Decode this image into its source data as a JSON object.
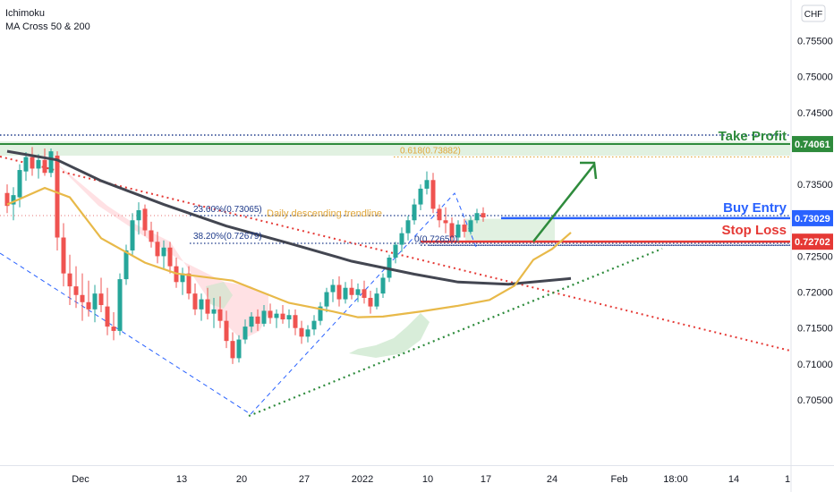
{
  "legend": {
    "line1": "Ichimoku",
    "line2": "MA Cross 50 & 200"
  },
  "currency_badge": "CHF",
  "colors": {
    "up_candle": "#26a69a",
    "down_candle": "#ef5350",
    "ma50": "#e8b949",
    "ma200": "#434651",
    "take_profit": "#2e8b3c",
    "buy_entry": "#2962ff",
    "stop_loss": "#e53935",
    "fib": "#e0a63a",
    "trendline": "#e53935",
    "support": "#2e8b3c",
    "cloud_bull": "#c8e6c9",
    "cloud_bear": "#ffcdd2"
  },
  "chart_data": {
    "type": "line",
    "instrument_quote": "CHF",
    "y_axis": {
      "ticks": [
        "0.75500",
        "0.75000",
        "0.74500",
        "0.74000",
        "0.73500",
        "0.73000",
        "0.72500",
        "0.72000",
        "0.71500",
        "0.71000",
        "0.70500"
      ],
      "range": [
        0.7045,
        0.7588
      ]
    },
    "x_axis": {
      "ticks": [
        "Dec",
        "13",
        "20",
        "27",
        "2022",
        "10",
        "17",
        "24",
        "Feb",
        "18:00",
        "14",
        "1"
      ]
    },
    "price_labels": {
      "take_profit": "0.74061",
      "buy_entry": "0.73029",
      "stop_loss": "0.72702"
    },
    "levels": [
      {
        "name": "Take Profit",
        "value": 0.74061
      },
      {
        "name": "Buy Entry",
        "value": 0.73029
      },
      {
        "name": "Stop Loss",
        "value": 0.72702
      }
    ],
    "fib_labels": [
      {
        "text": "0.618(0.73882)",
        "value": 0.73882
      },
      {
        "text": "23.60%(0.73065)",
        "value": 0.73065
      },
      {
        "text": "38.20%(0.72679)",
        "value": 0.72679
      },
      {
        "text": "0(0.72650)",
        "value": 0.7265
      }
    ],
    "annotations": [
      "Daily descending trendline"
    ],
    "ma50_points": [
      [
        0,
        0.7322
      ],
      [
        6,
        0.7345
      ],
      [
        10,
        0.7332
      ],
      [
        15,
        0.7275
      ],
      [
        22,
        0.7241
      ],
      [
        27,
        0.7226
      ],
      [
        36,
        0.7216
      ],
      [
        45,
        0.7185
      ],
      [
        52,
        0.7173
      ],
      [
        56,
        0.7165
      ],
      [
        60,
        0.7166
      ],
      [
        66,
        0.7173
      ],
      [
        72,
        0.7181
      ],
      [
        77,
        0.7189
      ],
      [
        81,
        0.7209
      ],
      [
        84,
        0.7245
      ],
      [
        87,
        0.726
      ],
      [
        90,
        0.7283
      ]
    ],
    "ma200_points": [
      [
        0,
        0.7396
      ],
      [
        8,
        0.7384
      ],
      [
        15,
        0.7355
      ],
      [
        25,
        0.7322
      ],
      [
        35,
        0.7292
      ],
      [
        45,
        0.7268
      ],
      [
        55,
        0.7243
      ],
      [
        65,
        0.7225
      ],
      [
        72,
        0.7214
      ],
      [
        80,
        0.7211
      ],
      [
        90,
        0.7219
      ]
    ],
    "candles": [
      [
        0.7338,
        0.735,
        0.731,
        0.732
      ],
      [
        0.7322,
        0.7346,
        0.73,
        0.7335
      ],
      [
        0.7332,
        0.7378,
        0.7318,
        0.737
      ],
      [
        0.7368,
        0.7395,
        0.7355,
        0.7388
      ],
      [
        0.7388,
        0.7402,
        0.7362,
        0.7372
      ],
      [
        0.7372,
        0.7392,
        0.7358,
        0.7384
      ],
      [
        0.7384,
        0.74,
        0.7362,
        0.7366
      ],
      [
        0.7366,
        0.74,
        0.736,
        0.7396
      ],
      [
        0.739,
        0.7396,
        0.7258,
        0.7276
      ],
      [
        0.7276,
        0.7296,
        0.7208,
        0.7226
      ],
      [
        0.7226,
        0.7252,
        0.7182,
        0.7208
      ],
      [
        0.7208,
        0.7236,
        0.7178,
        0.7196
      ],
      [
        0.7196,
        0.7226,
        0.716,
        0.7186
      ],
      [
        0.7186,
        0.7216,
        0.7166,
        0.7176
      ],
      [
        0.7176,
        0.721,
        0.7158,
        0.7198
      ],
      [
        0.7198,
        0.722,
        0.7172,
        0.7182
      ],
      [
        0.718,
        0.7206,
        0.714,
        0.7152
      ],
      [
        0.7152,
        0.7172,
        0.7133,
        0.7146
      ],
      [
        0.7146,
        0.7226,
        0.714,
        0.7218
      ],
      [
        0.7218,
        0.7266,
        0.721,
        0.7258
      ],
      [
        0.7258,
        0.731,
        0.725,
        0.73
      ],
      [
        0.73,
        0.7325,
        0.728,
        0.7314
      ],
      [
        0.7316,
        0.7322,
        0.7278,
        0.7286
      ],
      [
        0.7286,
        0.7298,
        0.7262,
        0.727
      ],
      [
        0.727,
        0.7284,
        0.724,
        0.725
      ],
      [
        0.725,
        0.7272,
        0.7232,
        0.7262
      ],
      [
        0.7262,
        0.727,
        0.7226,
        0.7236
      ],
      [
        0.7236,
        0.7248,
        0.7206,
        0.7214
      ],
      [
        0.7214,
        0.7234,
        0.7196,
        0.7226
      ],
      [
        0.7226,
        0.7236,
        0.719,
        0.7198
      ],
      [
        0.7198,
        0.7212,
        0.7168,
        0.7176
      ],
      [
        0.7176,
        0.7198,
        0.716,
        0.719
      ],
      [
        0.719,
        0.7206,
        0.7162,
        0.717
      ],
      [
        0.717,
        0.7192,
        0.715,
        0.7176
      ],
      [
        0.7176,
        0.7194,
        0.715,
        0.716
      ],
      [
        0.716,
        0.7174,
        0.7122,
        0.7132
      ],
      [
        0.7132,
        0.7144,
        0.71,
        0.7108
      ],
      [
        0.7108,
        0.714,
        0.7102,
        0.7134
      ],
      [
        0.7134,
        0.7162,
        0.7128,
        0.7152
      ],
      [
        0.7152,
        0.7172,
        0.7144,
        0.7166
      ],
      [
        0.7166,
        0.7176,
        0.7146,
        0.7156
      ],
      [
        0.7156,
        0.7182,
        0.7152,
        0.7174
      ],
      [
        0.7174,
        0.7184,
        0.7156,
        0.7164
      ],
      [
        0.7164,
        0.7176,
        0.715,
        0.717
      ],
      [
        0.717,
        0.7182,
        0.7156,
        0.7162
      ],
      [
        0.7162,
        0.7176,
        0.715,
        0.7168
      ],
      [
        0.7168,
        0.7176,
        0.714,
        0.715
      ],
      [
        0.715,
        0.716,
        0.7128,
        0.7138
      ],
      [
        0.7138,
        0.7154,
        0.713,
        0.7148
      ],
      [
        0.7148,
        0.7168,
        0.714,
        0.716
      ],
      [
        0.716,
        0.7186,
        0.7154,
        0.718
      ],
      [
        0.718,
        0.7206,
        0.7172,
        0.72
      ],
      [
        0.72,
        0.7218,
        0.7186,
        0.721
      ],
      [
        0.721,
        0.7222,
        0.718,
        0.719
      ],
      [
        0.719,
        0.7214,
        0.7184,
        0.7206
      ],
      [
        0.7206,
        0.7218,
        0.719,
        0.7196
      ],
      [
        0.7196,
        0.7212,
        0.7186,
        0.7204
      ],
      [
        0.7204,
        0.7216,
        0.7184,
        0.7192
      ],
      [
        0.7192,
        0.7202,
        0.717,
        0.718
      ],
      [
        0.718,
        0.7206,
        0.7176,
        0.7198
      ],
      [
        0.7198,
        0.7226,
        0.7192,
        0.722
      ],
      [
        0.722,
        0.7252,
        0.7214,
        0.7248
      ],
      [
        0.7248,
        0.727,
        0.724,
        0.7266
      ],
      [
        0.7266,
        0.729,
        0.7256,
        0.7282
      ],
      [
        0.7282,
        0.7306,
        0.7272,
        0.73
      ],
      [
        0.73,
        0.733,
        0.7294,
        0.7322
      ],
      [
        0.7322,
        0.735,
        0.7314,
        0.7344
      ],
      [
        0.7344,
        0.7368,
        0.7336,
        0.7356
      ],
      [
        0.7356,
        0.7366,
        0.731,
        0.7316
      ],
      [
        0.7316,
        0.7322,
        0.729,
        0.73
      ],
      [
        0.73,
        0.7318,
        0.7282,
        0.7296
      ],
      [
        0.7296,
        0.7304,
        0.727,
        0.7276
      ],
      [
        0.7276,
        0.73,
        0.727,
        0.7294
      ],
      [
        0.7294,
        0.7302,
        0.7276,
        0.7284
      ],
      [
        0.7284,
        0.7306,
        0.728,
        0.73
      ],
      [
        0.73,
        0.7316,
        0.7296,
        0.731
      ],
      [
        0.731,
        0.7318,
        0.7298,
        0.7304
      ]
    ]
  }
}
